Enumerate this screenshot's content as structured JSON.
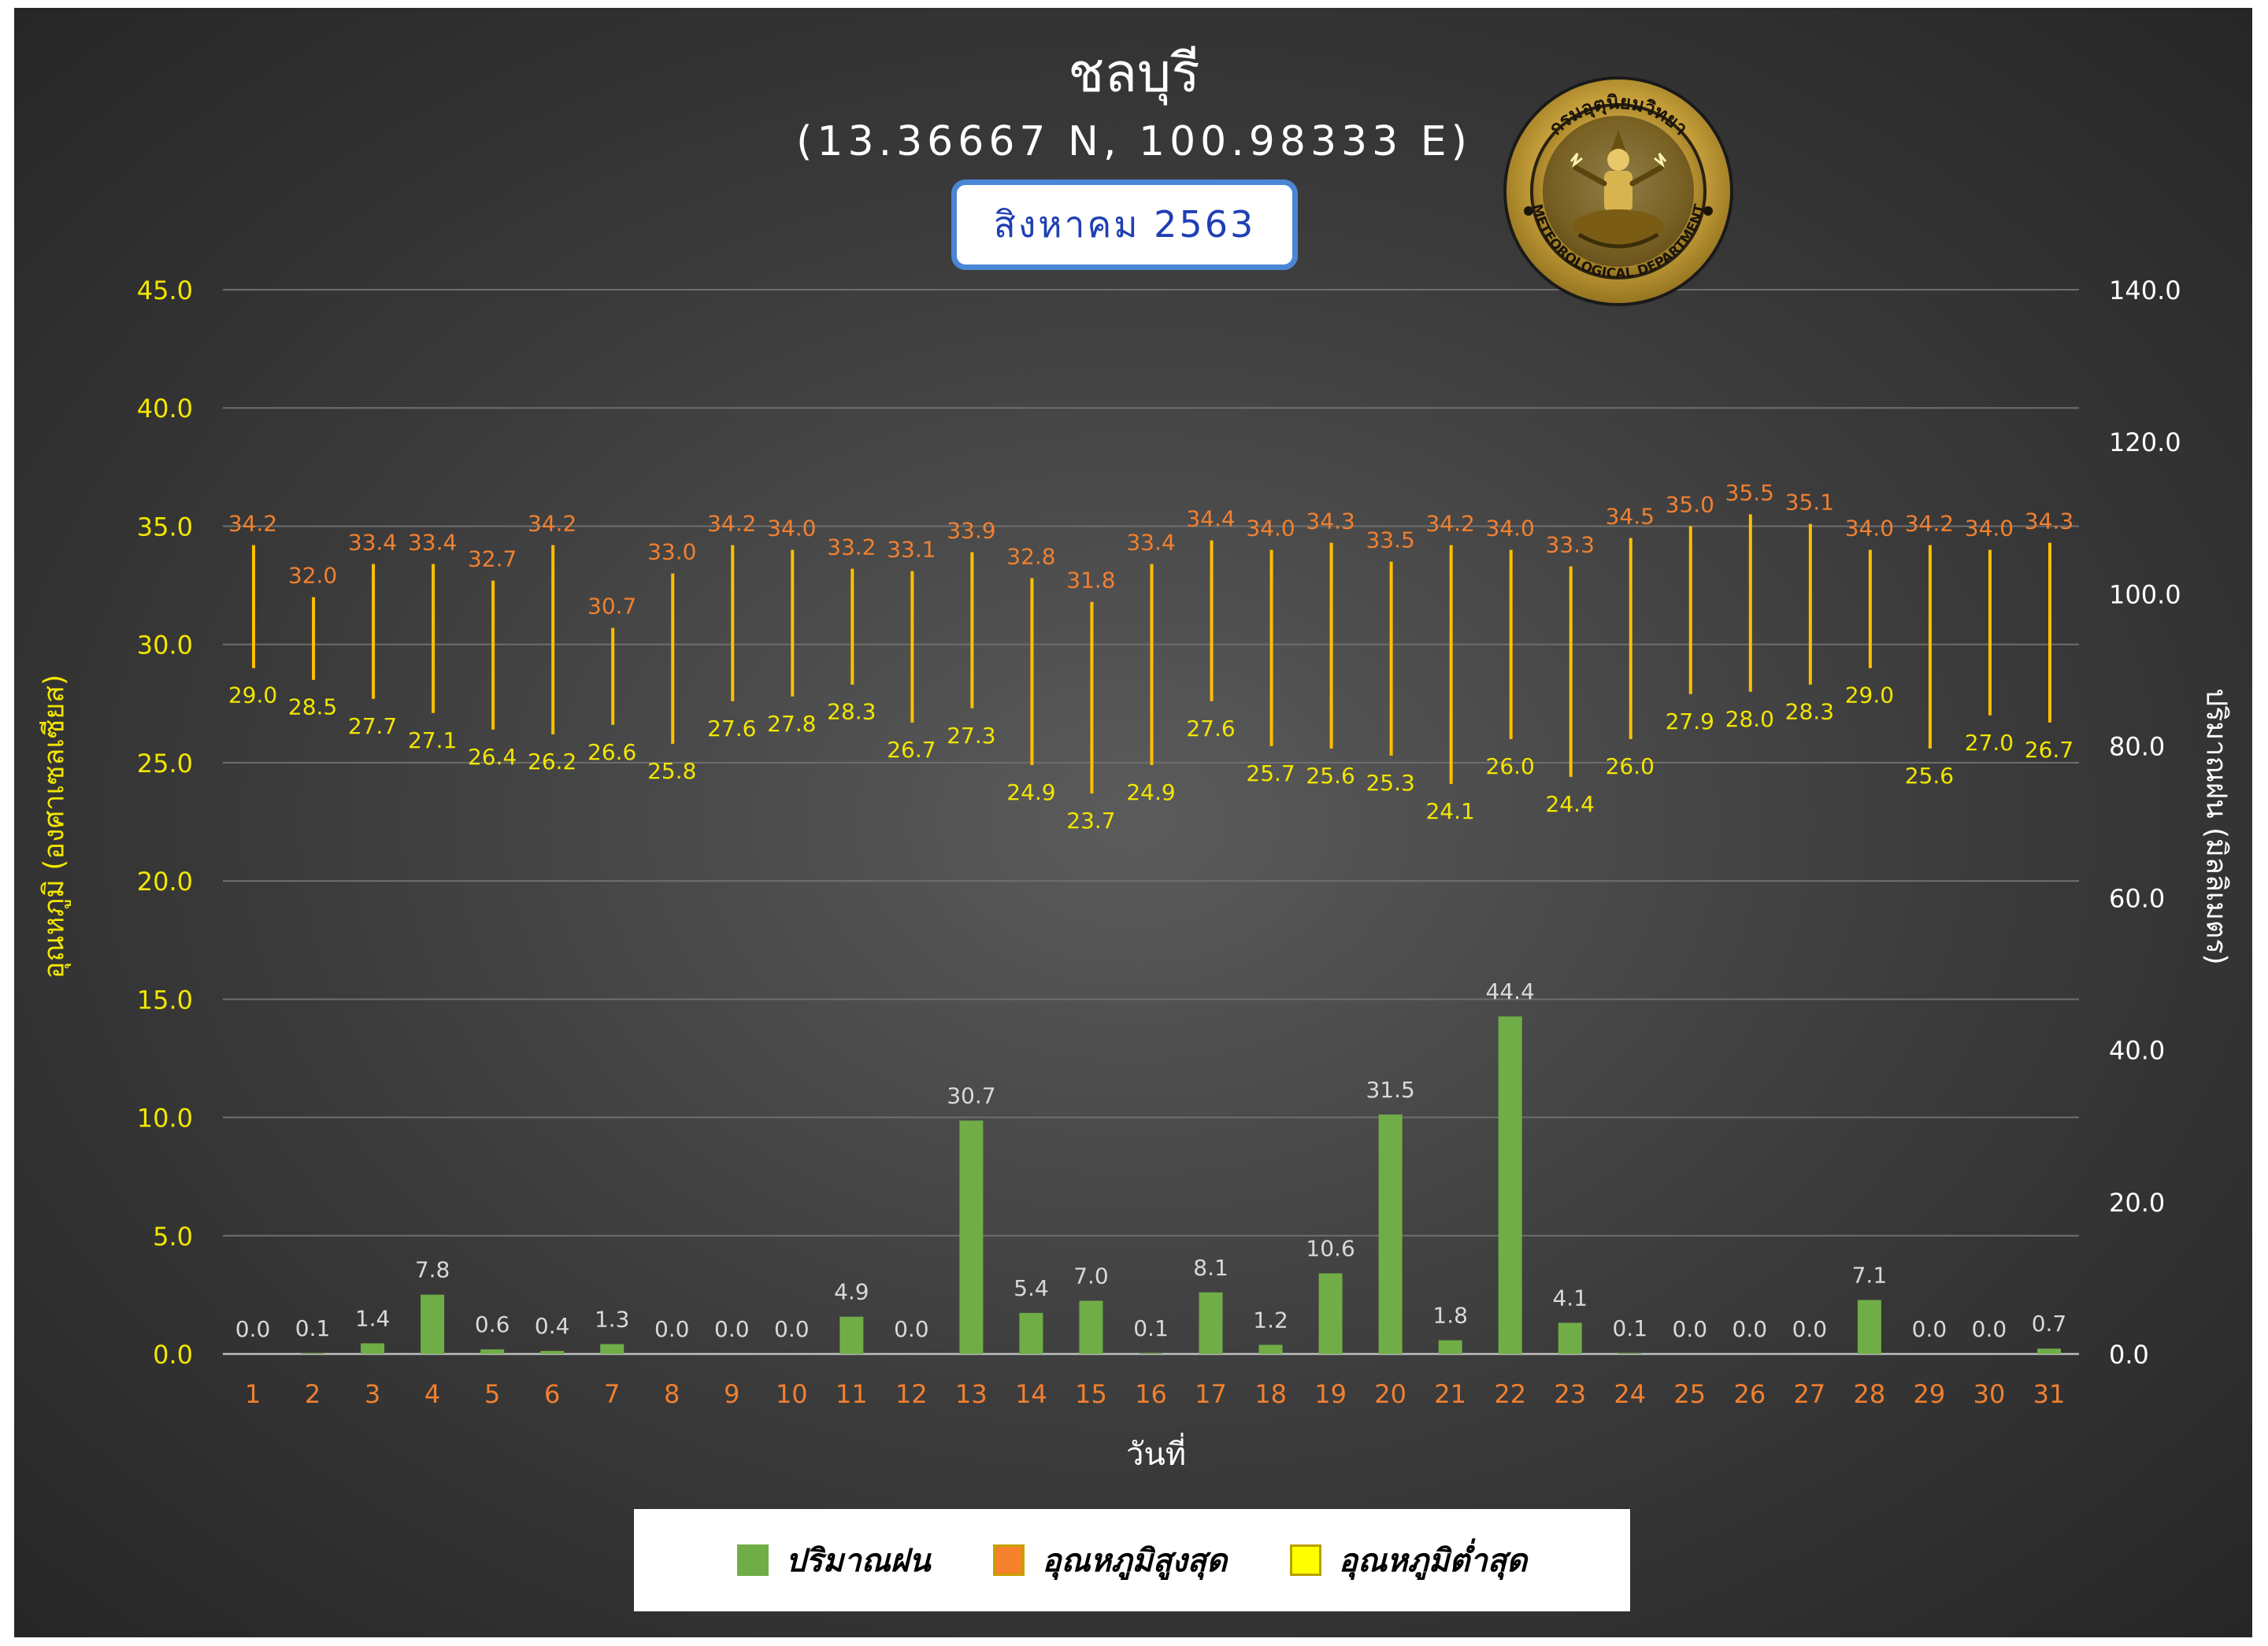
{
  "header": {
    "title": "ชลบุรี",
    "coordinates": "(13.36667 N, 100.98333 E)",
    "month": "สิงหาคม 2563"
  },
  "seal": {
    "top_text": "กรมอุตุนิยมวิทยา",
    "bottom_text": "METEOROLOGICAL DEPARTMENT"
  },
  "colors": {
    "rain": "#70ad47",
    "tmax_label": "#f08030",
    "tmin_label": "#f2e600",
    "range_line": "#ffc000",
    "rain_label": "#d9d9d9",
    "x_tick": "#f08030",
    "y1_tick": "#f2e600",
    "y2_tick": "#ffffff",
    "month_border": "#4a86d6",
    "month_text": "#1f3fb3"
  },
  "chart_data": {
    "type": "bar",
    "xlabel": "วันที่",
    "ylabel_left": "อุณหภูมิ (องศาเซลเซียส)",
    "ylabel_right": "ปริมาณฝน (มิลลิเมตร)",
    "ylim_left": [
      0,
      45
    ],
    "ylim_right": [
      0,
      140
    ],
    "yticks_left": [
      "0.0",
      "5.0",
      "10.0",
      "15.0",
      "20.0",
      "25.0",
      "30.0",
      "35.0",
      "40.0",
      "45.0"
    ],
    "yticks_right": [
      "0.0",
      "20.0",
      "40.0",
      "60.0",
      "80.0",
      "100.0",
      "120.0",
      "140.0"
    ],
    "grid": true,
    "legend_position": "bottom",
    "categories": [
      "1",
      "2",
      "3",
      "4",
      "5",
      "6",
      "7",
      "8",
      "9",
      "10",
      "11",
      "12",
      "13",
      "14",
      "15",
      "16",
      "17",
      "18",
      "19",
      "20",
      "21",
      "22",
      "23",
      "24",
      "25",
      "26",
      "27",
      "28",
      "29",
      "30",
      "31"
    ],
    "series": [
      {
        "name": "ปริมาณฝน",
        "axis": "right",
        "type": "bar",
        "values": [
          0.0,
          0.1,
          1.4,
          7.8,
          0.6,
          0.4,
          1.3,
          0.0,
          0.0,
          0.0,
          4.9,
          0.0,
          30.7,
          5.4,
          7.0,
          0.1,
          8.1,
          1.2,
          10.6,
          31.5,
          1.8,
          44.4,
          4.1,
          0.1,
          0.0,
          0.0,
          0.0,
          7.1,
          0.0,
          0.0,
          0.7
        ]
      },
      {
        "name": "อุณหภูมิสูงสุด",
        "axis": "left",
        "type": "range-high",
        "values": [
          34.2,
          32.0,
          33.4,
          33.4,
          32.7,
          34.2,
          30.7,
          33.0,
          34.2,
          34.0,
          33.2,
          33.1,
          33.9,
          32.8,
          31.8,
          33.4,
          34.4,
          34.0,
          34.3,
          33.5,
          34.2,
          34.0,
          33.3,
          34.5,
          35.0,
          35.5,
          35.1,
          34.0,
          34.2,
          34.0,
          34.3
        ]
      },
      {
        "name": "อุณหภูมิต่ำสุด",
        "axis": "left",
        "type": "range-low",
        "values": [
          29.0,
          28.5,
          27.7,
          27.1,
          26.4,
          26.2,
          26.6,
          25.8,
          27.6,
          27.8,
          28.3,
          26.7,
          27.3,
          24.9,
          23.7,
          24.9,
          27.6,
          25.7,
          25.6,
          25.3,
          24.1,
          26.0,
          24.4,
          26.0,
          27.9,
          28.0,
          28.3,
          29.0,
          25.6,
          27.0,
          26.7
        ]
      }
    ]
  }
}
